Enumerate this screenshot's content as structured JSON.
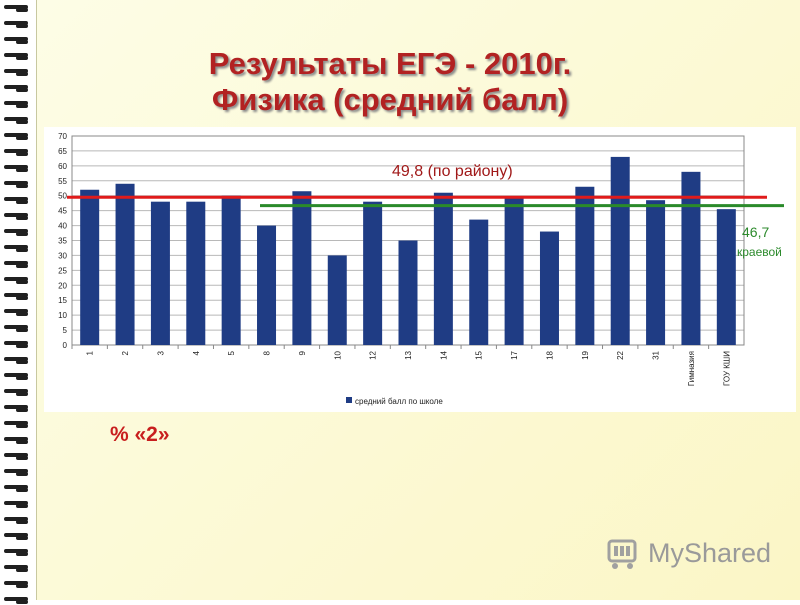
{
  "title": {
    "line1": "Результаты ЕГЭ - 2010г.",
    "line2": "Физика (средний балл)"
  },
  "chart_data": {
    "type": "bar",
    "categories": [
      "1",
      "2",
      "3",
      "4",
      "5",
      "8",
      "9",
      "10",
      "12",
      "13",
      "14",
      "15",
      "17",
      "18",
      "19",
      "22",
      "31",
      "Гимназия",
      "ГОУ КШИ"
    ],
    "series": [
      {
        "name": "средний балл по школе",
        "values": [
          52,
          54,
          48,
          48,
          50,
          40,
          51.5,
          30,
          48,
          35,
          51,
          42,
          49.5,
          38,
          53,
          63,
          48.5,
          58,
          45.5
        ]
      }
    ],
    "ylim": [
      0,
      70
    ],
    "yticks": [
      0,
      5,
      10,
      15,
      20,
      25,
      30,
      35,
      40,
      45,
      50,
      55,
      60,
      65,
      70
    ],
    "grid": true,
    "legend": "bottom",
    "bar_color": "#1f3c84",
    "reference_lines": [
      {
        "label": "49,8 (по району)",
        "value": 49.8,
        "color": "#e01b1b"
      },
      {
        "value": 46.7,
        "color": "#2a8a2a",
        "label_value": "46,7",
        "label_text": "краевой"
      }
    ]
  },
  "annotations": {
    "district": "49,8 (по району)",
    "krai_value": "46,7",
    "krai_label": "краевой"
  },
  "percent_label": "%  «2»",
  "watermark": {
    "text": "MyShared",
    "icon": "shopping-cart-icon"
  }
}
